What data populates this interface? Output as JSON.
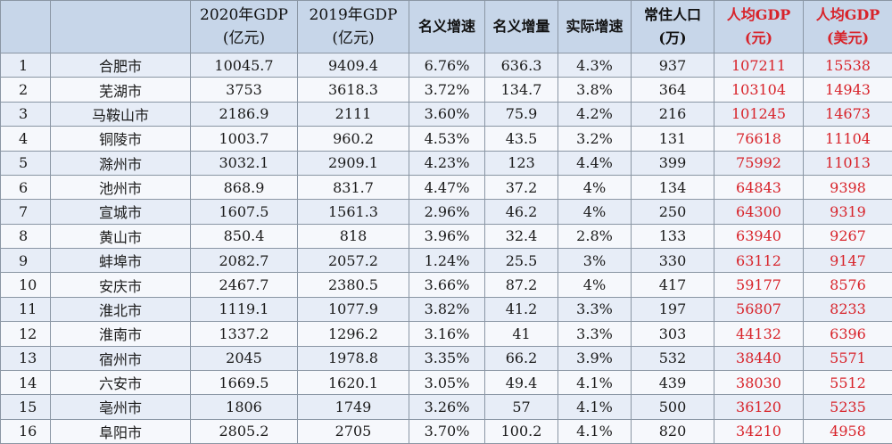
{
  "headers": {
    "rank": "",
    "city": "",
    "gdp2020": {
      "line1": "2020年GDP",
      "line2": "(亿元)"
    },
    "gdp2019": {
      "line1": "2019年GDP",
      "line2": "(亿元)"
    },
    "nominal_growth": "名义增速",
    "nominal_increase": "名义增量",
    "real_growth": "实际增速",
    "population": {
      "line1": "常住人口",
      "line2": "(万)"
    },
    "per_capita_cny": {
      "line1": "人均GDP",
      "line2": "(元)"
    },
    "per_capita_usd": {
      "line1": "人均GDP",
      "line2": "(美元)"
    }
  },
  "rows": [
    {
      "rank": "1",
      "city": "合肥市",
      "gdp2020": "10045.7",
      "gdp2019": "9409.4",
      "nominal_growth": "6.76%",
      "nominal_increase": "636.3",
      "real_growth": "4.3%",
      "population": "937",
      "per_capita_cny": "107211",
      "per_capita_usd": "15538"
    },
    {
      "rank": "2",
      "city": "芜湖市",
      "gdp2020": "3753",
      "gdp2019": "3618.3",
      "nominal_growth": "3.72%",
      "nominal_increase": "134.7",
      "real_growth": "3.8%",
      "population": "364",
      "per_capita_cny": "103104",
      "per_capita_usd": "14943"
    },
    {
      "rank": "3",
      "city": "马鞍山市",
      "gdp2020": "2186.9",
      "gdp2019": "2111",
      "nominal_growth": "3.60%",
      "nominal_increase": "75.9",
      "real_growth": "4.2%",
      "population": "216",
      "per_capita_cny": "101245",
      "per_capita_usd": "14673"
    },
    {
      "rank": "4",
      "city": "铜陵市",
      "gdp2020": "1003.7",
      "gdp2019": "960.2",
      "nominal_growth": "4.53%",
      "nominal_increase": "43.5",
      "real_growth": "3.2%",
      "population": "131",
      "per_capita_cny": "76618",
      "per_capita_usd": "11104"
    },
    {
      "rank": "5",
      "city": "滁州市",
      "gdp2020": "3032.1",
      "gdp2019": "2909.1",
      "nominal_growth": "4.23%",
      "nominal_increase": "123",
      "real_growth": "4.4%",
      "population": "399",
      "per_capita_cny": "75992",
      "per_capita_usd": "11013"
    },
    {
      "rank": "6",
      "city": "池州市",
      "gdp2020": "868.9",
      "gdp2019": "831.7",
      "nominal_growth": "4.47%",
      "nominal_increase": "37.2",
      "real_growth": "4%",
      "population": "134",
      "per_capita_cny": "64843",
      "per_capita_usd": "9398"
    },
    {
      "rank": "7",
      "city": "宣城市",
      "gdp2020": "1607.5",
      "gdp2019": "1561.3",
      "nominal_growth": "2.96%",
      "nominal_increase": "46.2",
      "real_growth": "4%",
      "population": "250",
      "per_capita_cny": "64300",
      "per_capita_usd": "9319"
    },
    {
      "rank": "8",
      "city": "黄山市",
      "gdp2020": "850.4",
      "gdp2019": "818",
      "nominal_growth": "3.96%",
      "nominal_increase": "32.4",
      "real_growth": "2.8%",
      "population": "133",
      "per_capita_cny": "63940",
      "per_capita_usd": "9267"
    },
    {
      "rank": "9",
      "city": "蚌埠市",
      "gdp2020": "2082.7",
      "gdp2019": "2057.2",
      "nominal_growth": "1.24%",
      "nominal_increase": "25.5",
      "real_growth": "3%",
      "population": "330",
      "per_capita_cny": "63112",
      "per_capita_usd": "9147"
    },
    {
      "rank": "10",
      "city": "安庆市",
      "gdp2020": "2467.7",
      "gdp2019": "2380.5",
      "nominal_growth": "3.66%",
      "nominal_increase": "87.2",
      "real_growth": "4%",
      "population": "417",
      "per_capita_cny": "59177",
      "per_capita_usd": "8576"
    },
    {
      "rank": "11",
      "city": "淮北市",
      "gdp2020": "1119.1",
      "gdp2019": "1077.9",
      "nominal_growth": "3.82%",
      "nominal_increase": "41.2",
      "real_growth": "3.3%",
      "population": "197",
      "per_capita_cny": "56807",
      "per_capita_usd": "8233"
    },
    {
      "rank": "12",
      "city": "淮南市",
      "gdp2020": "1337.2",
      "gdp2019": "1296.2",
      "nominal_growth": "3.16%",
      "nominal_increase": "41",
      "real_growth": "3.3%",
      "population": "303",
      "per_capita_cny": "44132",
      "per_capita_usd": "6396"
    },
    {
      "rank": "13",
      "city": "宿州市",
      "gdp2020": "2045",
      "gdp2019": "1978.8",
      "nominal_growth": "3.35%",
      "nominal_increase": "66.2",
      "real_growth": "3.9%",
      "population": "532",
      "per_capita_cny": "38440",
      "per_capita_usd": "5571"
    },
    {
      "rank": "14",
      "city": "六安市",
      "gdp2020": "1669.5",
      "gdp2019": "1620.1",
      "nominal_growth": "3.05%",
      "nominal_increase": "49.4",
      "real_growth": "4.1%",
      "population": "439",
      "per_capita_cny": "38030",
      "per_capita_usd": "5512"
    },
    {
      "rank": "15",
      "city": "亳州市",
      "gdp2020": "1806",
      "gdp2019": "1749",
      "nominal_growth": "3.26%",
      "nominal_increase": "57",
      "real_growth": "4.1%",
      "population": "500",
      "per_capita_cny": "36120",
      "per_capita_usd": "5235"
    },
    {
      "rank": "16",
      "city": "阜阳市",
      "gdp2020": "2805.2",
      "gdp2019": "2705",
      "nominal_growth": "3.70%",
      "nominal_increase": "100.2",
      "real_growth": "4.1%",
      "population": "820",
      "per_capita_cny": "34210",
      "per_capita_usd": "4958"
    }
  ],
  "colors": {
    "header_bg": "#c7d6e9",
    "highlight_text": "#d8232a",
    "row_odd": "#e7edf7",
    "row_even": "#f6f8fc"
  }
}
